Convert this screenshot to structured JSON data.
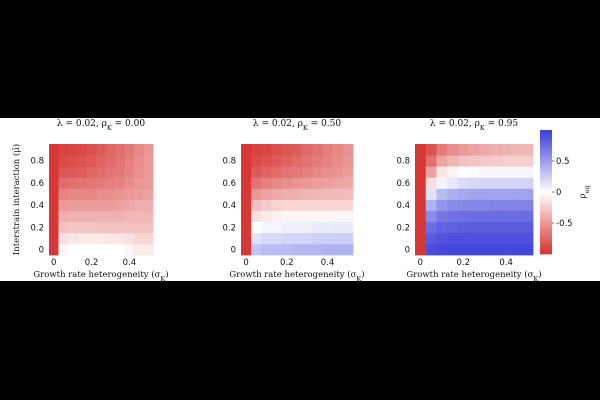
{
  "chart_data": [
    {
      "type": "heatmap",
      "title": "λ = 0.02, ρ_K = 0.00",
      "xlabel": "Growth rate heterogeneity (σ_K)",
      "ylabel": "Interstrain interaction (μ̄)",
      "xticks": [
        "0",
        "0.2",
        "0.4"
      ],
      "yticks": [
        "0",
        "0.2",
        "0.4",
        "0.6",
        "0.8"
      ],
      "x": [
        0,
        0.05,
        0.1,
        0.15,
        0.2,
        0.25,
        0.3,
        0.35,
        0.4,
        0.45,
        0.5
      ],
      "y": [
        0,
        0.1,
        0.2,
        0.3,
        0.4,
        0.5,
        0.6,
        0.7,
        0.8,
        0.9
      ],
      "xlim": [
        -0.025,
        0.525
      ],
      "ylim": [
        -0.05,
        0.95
      ],
      "values": [
        [
          -0.97,
          -0.05,
          0.0,
          0.0,
          0.0,
          0.0,
          0.0,
          0.0,
          -0.05,
          -0.1,
          -0.1
        ],
        [
          -0.97,
          -0.15,
          -0.12,
          -0.1,
          -0.1,
          -0.1,
          -0.12,
          -0.12,
          -0.15,
          -0.2,
          -0.2
        ],
        [
          -0.97,
          -0.3,
          -0.28,
          -0.28,
          -0.28,
          -0.3,
          -0.3,
          -0.3,
          -0.3,
          -0.3,
          -0.3
        ],
        [
          -0.97,
          -0.4,
          -0.38,
          -0.38,
          -0.38,
          -0.38,
          -0.38,
          -0.38,
          -0.35,
          -0.35,
          -0.35
        ],
        [
          -0.97,
          -0.5,
          -0.48,
          -0.48,
          -0.48,
          -0.48,
          -0.48,
          -0.45,
          -0.42,
          -0.4,
          -0.4
        ],
        [
          -0.97,
          -0.6,
          -0.58,
          -0.58,
          -0.58,
          -0.55,
          -0.55,
          -0.52,
          -0.5,
          -0.48,
          -0.45
        ],
        [
          -0.97,
          -0.72,
          -0.7,
          -0.68,
          -0.66,
          -0.64,
          -0.62,
          -0.6,
          -0.55,
          -0.5,
          -0.48
        ],
        [
          -0.97,
          -0.82,
          -0.8,
          -0.78,
          -0.75,
          -0.72,
          -0.68,
          -0.65,
          -0.6,
          -0.55,
          -0.5
        ],
        [
          -0.97,
          -0.88,
          -0.86,
          -0.84,
          -0.8,
          -0.76,
          -0.72,
          -0.68,
          -0.62,
          -0.55,
          -0.5
        ],
        [
          -0.97,
          -0.92,
          -0.9,
          -0.88,
          -0.85,
          -0.8,
          -0.75,
          -0.7,
          -0.65,
          -0.58,
          -0.52
        ]
      ]
    },
    {
      "type": "heatmap",
      "title": "λ = 0.02, ρ_K = 0.50",
      "xlabel": "Growth rate heterogeneity (σ_K)",
      "xticks": [
        "0",
        "0.2",
        "0.4"
      ],
      "yticks": [
        "0",
        "0.2",
        "0.4",
        "0.6",
        "0.8"
      ],
      "x": [
        0,
        0.05,
        0.1,
        0.15,
        0.2,
        0.25,
        0.3,
        0.35,
        0.4,
        0.45,
        0.5
      ],
      "y": [
        0,
        0.1,
        0.2,
        0.3,
        0.4,
        0.5,
        0.6,
        0.7,
        0.8,
        0.9
      ],
      "xlim": [
        -0.025,
        0.525
      ],
      "ylim": [
        -0.05,
        0.95
      ],
      "values": [
        [
          -0.97,
          0.3,
          0.35,
          0.35,
          0.35,
          0.38,
          0.38,
          0.38,
          0.4,
          0.4,
          0.4
        ],
        [
          -0.97,
          0.15,
          0.2,
          0.2,
          0.22,
          0.22,
          0.22,
          0.25,
          0.25,
          0.25,
          0.25
        ],
        [
          -0.97,
          0.0,
          0.05,
          0.05,
          0.08,
          0.08,
          0.08,
          0.1,
          0.1,
          0.12,
          0.12
        ],
        [
          -0.97,
          -0.15,
          -0.1,
          -0.08,
          -0.05,
          -0.05,
          -0.05,
          -0.05,
          -0.05,
          -0.05,
          -0.05
        ],
        [
          -0.97,
          -0.3,
          -0.25,
          -0.22,
          -0.2,
          -0.2,
          -0.2,
          -0.2,
          -0.2,
          -0.2,
          -0.2
        ],
        [
          -0.97,
          -0.5,
          -0.45,
          -0.42,
          -0.4,
          -0.38,
          -0.36,
          -0.35,
          -0.34,
          -0.33,
          -0.32
        ],
        [
          -0.97,
          -0.68,
          -0.62,
          -0.58,
          -0.55,
          -0.52,
          -0.5,
          -0.48,
          -0.46,
          -0.44,
          -0.42
        ],
        [
          -0.97,
          -0.8,
          -0.76,
          -0.72,
          -0.68,
          -0.65,
          -0.62,
          -0.58,
          -0.55,
          -0.52,
          -0.48
        ],
        [
          -0.97,
          -0.88,
          -0.84,
          -0.8,
          -0.76,
          -0.72,
          -0.68,
          -0.64,
          -0.6,
          -0.56,
          -0.52
        ],
        [
          -0.97,
          -0.92,
          -0.9,
          -0.86,
          -0.82,
          -0.78,
          -0.73,
          -0.68,
          -0.63,
          -0.58,
          -0.53
        ]
      ]
    },
    {
      "type": "heatmap",
      "title": "λ = 0.02, ρ_K = 0.95",
      "xlabel": "Growth rate heterogeneity (σ_K)",
      "xticks": [
        "0",
        "0.2",
        "0.4"
      ],
      "yticks": [
        "0",
        "0.2",
        "0.4",
        "0.6",
        "0.8"
      ],
      "x": [
        0,
        0.05,
        0.1,
        0.15,
        0.2,
        0.25,
        0.3,
        0.35,
        0.4,
        0.45,
        0.5
      ],
      "y": [
        0,
        0.1,
        0.2,
        0.3,
        0.4,
        0.5,
        0.6,
        0.7,
        0.8,
        0.9
      ],
      "xlim": [
        -0.025,
        0.525
      ],
      "ylim": [
        -0.05,
        0.95
      ],
      "values": [
        [
          -0.97,
          0.92,
          0.94,
          0.95,
          0.95,
          0.95,
          0.95,
          0.95,
          0.95,
          0.95,
          0.95
        ],
        [
          -0.97,
          0.85,
          0.88,
          0.9,
          0.9,
          0.9,
          0.9,
          0.9,
          0.9,
          0.9,
          0.9
        ],
        [
          -0.97,
          0.75,
          0.8,
          0.82,
          0.83,
          0.84,
          0.84,
          0.84,
          0.84,
          0.84,
          0.84
        ],
        [
          -0.97,
          0.6,
          0.7,
          0.72,
          0.74,
          0.75,
          0.75,
          0.75,
          0.75,
          0.75,
          0.75
        ],
        [
          -0.97,
          0.4,
          0.55,
          0.6,
          0.62,
          0.63,
          0.63,
          0.64,
          0.64,
          0.64,
          0.64
        ],
        [
          -0.97,
          0.15,
          0.35,
          0.42,
          0.45,
          0.47,
          0.48,
          0.48,
          0.48,
          0.48,
          0.48
        ],
        [
          -0.97,
          -0.15,
          0.05,
          0.12,
          0.18,
          0.2,
          0.22,
          0.22,
          0.22,
          0.22,
          0.22
        ],
        [
          -0.97,
          -0.45,
          -0.12,
          -0.05,
          0.0,
          0.02,
          0.04,
          0.04,
          0.04,
          0.04,
          0.04
        ],
        [
          -0.97,
          -0.7,
          -0.45,
          -0.35,
          -0.3,
          -0.28,
          -0.26,
          -0.25,
          -0.24,
          -0.24,
          -0.24
        ],
        [
          -0.97,
          -0.85,
          -0.65,
          -0.55,
          -0.5,
          -0.45,
          -0.42,
          -0.4,
          -0.38,
          -0.36,
          -0.35
        ]
      ]
    }
  ],
  "colorbar": {
    "label": "ρ_eq",
    "ticks": [
      {
        "value": 0.5,
        "label": "0.5"
      },
      {
        "value": 0,
        "label": "0"
      },
      {
        "value": -0.5,
        "label": "-0.5"
      }
    ],
    "range": [
      -1,
      1
    ],
    "colors": {
      "low": "#d6312f",
      "mid": "#ffffff",
      "high": "#3a3dd9"
    }
  }
}
